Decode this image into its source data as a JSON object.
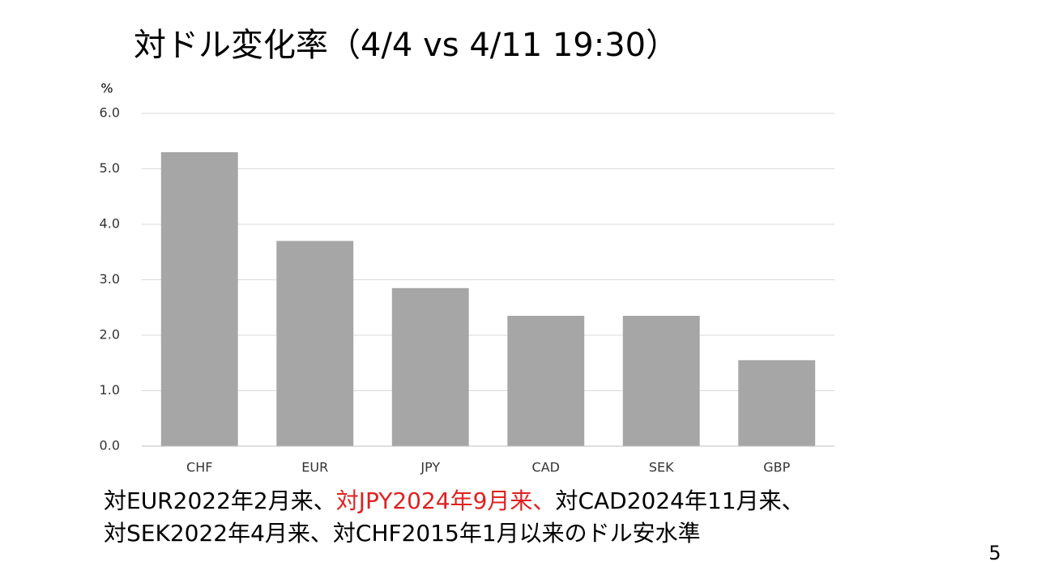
{
  "chart_data": {
    "type": "bar",
    "title": "対ドル変化率（4/4 vs 4/11 19:30）",
    "y_label": "%",
    "categories": [
      "CHF",
      "EUR",
      "JPY",
      "CAD",
      "SEK",
      "GBP"
    ],
    "values": [
      5.3,
      3.7,
      2.85,
      2.35,
      2.35,
      1.55
    ],
    "color": "#a6a6a6",
    "ylim": [
      0,
      6
    ],
    "yticks": [
      {
        "value": 0,
        "label": "0.0"
      },
      {
        "value": 1,
        "label": "1.0"
      },
      {
        "value": 2,
        "label": "2.0"
      },
      {
        "value": 3,
        "label": "3.0"
      },
      {
        "value": 4,
        "label": "4.0"
      },
      {
        "value": 5,
        "label": "5.0"
      },
      {
        "value": 6,
        "label": "6.0"
      }
    ],
    "grid": true,
    "annotation_lines": [
      [
        {
          "text": "対EUR2022年2月来、",
          "color": "#000000"
        },
        {
          "text": "対JPY2024年9月来、",
          "color": "#e02020"
        },
        {
          "text": "対CAD2024年11月来、",
          "color": "#000000"
        }
      ],
      [
        {
          "text": "対SEK2022年4月来、対CHF2015年1月以来のドル安水準",
          "color": "#000000"
        }
      ]
    ]
  },
  "page_number": 5
}
